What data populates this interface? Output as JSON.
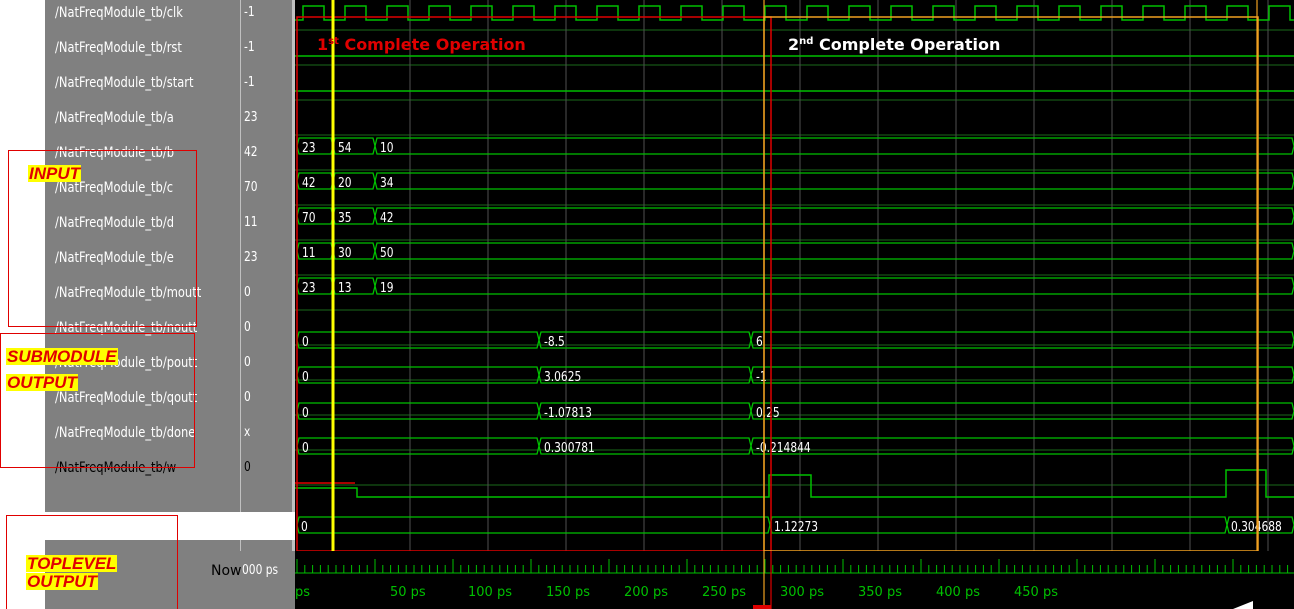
{
  "signals": [
    {
      "name": "/NatFreqModule_tb/clk",
      "value": "-1"
    },
    {
      "name": "/NatFreqModule_tb/rst",
      "value": "-1"
    },
    {
      "name": "/NatFreqModule_tb/start",
      "value": "-1"
    },
    {
      "name": "/NatFreqModule_tb/a",
      "value": "23"
    },
    {
      "name": "/NatFreqModule_tb/b",
      "value": "42"
    },
    {
      "name": "/NatFreqModule_tb/c",
      "value": "70"
    },
    {
      "name": "/NatFreqModule_tb/d",
      "value": "11"
    },
    {
      "name": "/NatFreqModule_tb/e",
      "value": "23"
    },
    {
      "name": "/NatFreqModule_tb/moutt",
      "value": "0"
    },
    {
      "name": "/NatFreqModule_tb/noutt",
      "value": "0"
    },
    {
      "name": "/NatFreqModule_tb/poutt",
      "value": "0"
    },
    {
      "name": "/NatFreqModule_tb/qoutt",
      "value": "0"
    },
    {
      "name": "/NatFreqModule_tb/done",
      "value": "x"
    },
    {
      "name": "/NatFreqModule_tb/w",
      "value": "0"
    }
  ],
  "bus_values": {
    "a": [
      "23",
      "54",
      "10"
    ],
    "b": [
      "42",
      "20",
      "34"
    ],
    "c": [
      "70",
      "35",
      "42"
    ],
    "d": [
      "11",
      "30",
      "50"
    ],
    "e": [
      "23",
      "13",
      "19"
    ],
    "moutt": [
      "0",
      "-8.5",
      "6"
    ],
    "noutt": [
      "0",
      "3.0625",
      "-1"
    ],
    "poutt": [
      "0",
      "-1.07813",
      "0.25"
    ],
    "qoutt": [
      "0",
      "0.300781",
      "-0.214844"
    ],
    "w": [
      "0",
      "1.12273",
      "0.304688"
    ]
  },
  "now": {
    "label": "Now",
    "value": "000 ps"
  },
  "time_axis": {
    "unit": "ps",
    "tick_labels": [
      "ps",
      "50 ps",
      "100 ps",
      "150 ps",
      "200 ps",
      "250 ps",
      "300 ps",
      "350 ps",
      "400 ps",
      "450 ps"
    ]
  },
  "annotations": {
    "input": "INPUT",
    "submodule_line1": "SUBMODULE",
    "submodule_line2": "OUTPUT",
    "toplevel_line1": "TOPLEVEL",
    "toplevel_line2": "OUTPUT",
    "op1_prefix": "1",
    "op1_sup": "st",
    "op1_text": "Complete Operation",
    "op2_prefix": "2",
    "op2_sup": "nd",
    "op2_text": "Complete Operation"
  },
  "colors": {
    "wave": "#00c000",
    "annotation": "#e00000",
    "cursor": "#ffff00",
    "marker": "#f0a020",
    "highlight": "#ffff00"
  }
}
